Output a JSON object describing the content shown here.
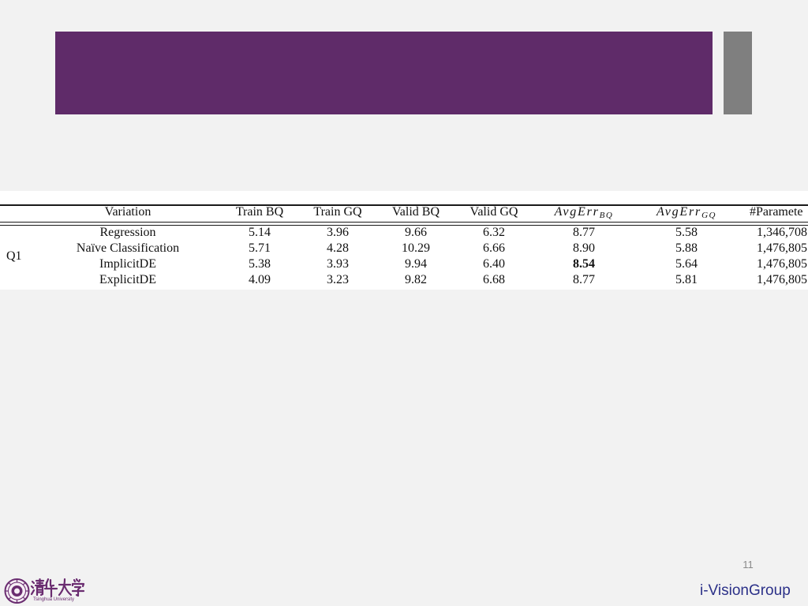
{
  "colors": {
    "background": "#f2f2f2",
    "header_bar": "#5f2b69",
    "side_accent": "#7f7f7f",
    "brand_text": "#2b3088",
    "logo": "#6a2c70"
  },
  "slide": {
    "page_number": "11",
    "footer_brand": "i-VisionGroup"
  },
  "logo": {
    "name": "清华大学",
    "english_name": "Tsinghua University"
  },
  "table": {
    "group_label": "Q1",
    "columns": [
      {
        "label": "Variation"
      },
      {
        "label": "Train BQ"
      },
      {
        "label": "Train GQ"
      },
      {
        "label": "Valid BQ"
      },
      {
        "label": "Valid GQ"
      },
      {
        "label": "AvgErr",
        "sub": "BQ"
      },
      {
        "label": "AvgErr",
        "sub": "GQ"
      },
      {
        "label": "#Paramete"
      }
    ],
    "rows": [
      {
        "variation": "Regression",
        "values": [
          "5.14",
          "3.96",
          "9.66",
          "6.32",
          "8.77",
          "5.58",
          "1,346,708"
        ]
      },
      {
        "variation": "Naïve Classification",
        "values": [
          "5.71",
          "4.28",
          "10.29",
          "6.66",
          "8.90",
          "5.88",
          "1,476,805"
        ]
      },
      {
        "variation": "ImplicitDE",
        "values": [
          "5.38",
          "3.93",
          "9.94",
          "6.40",
          "8.54",
          "5.64",
          "1,476,805"
        ]
      },
      {
        "variation": "ExplicitDE",
        "values": [
          "4.09",
          "3.23",
          "9.82",
          "6.68",
          "8.77",
          "5.81",
          "1,476,805"
        ]
      }
    ]
  }
}
